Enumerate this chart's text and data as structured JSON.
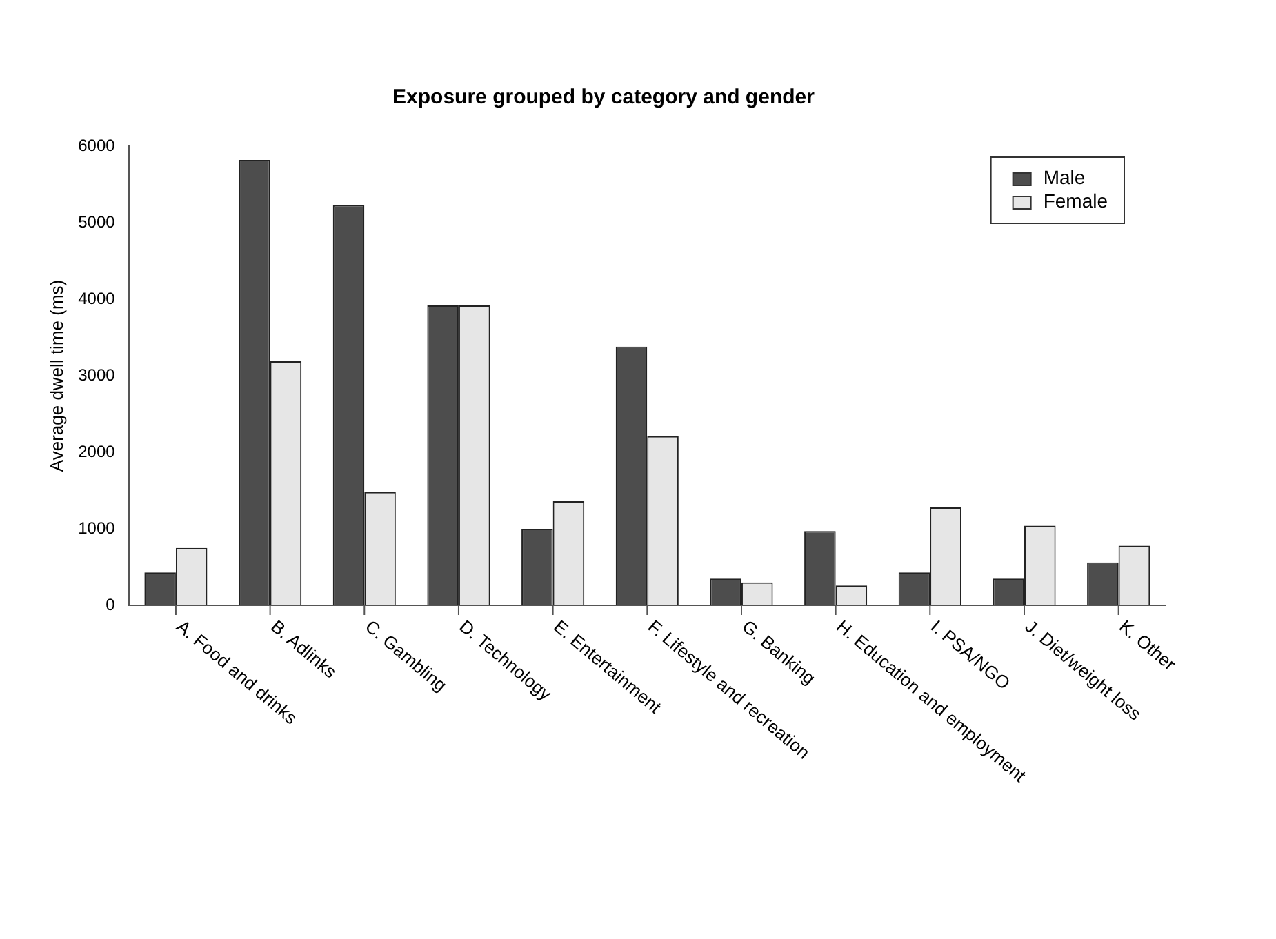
{
  "chart_data": {
    "type": "bar",
    "title": "Exposure grouped by category and gender",
    "ylabel": "Average dwell time (ms)",
    "categories": [
      "A. Food and drinks",
      "B. Adlinks",
      "C. Gambling",
      "D. Technology",
      "E. Entertainment",
      "F. Lifestyle and recreation",
      "G. Banking",
      "H. Education and employment",
      "I. PSA/NGO",
      "J. Diet/weight loss",
      "K. Other"
    ],
    "series": [
      {
        "name": "Male",
        "color": "#4d4d4d",
        "values": [
          430,
          5820,
          5230,
          3920,
          1000,
          3380,
          350,
          970,
          430,
          350,
          560
        ]
      },
      {
        "name": "Female",
        "color": "#e6e6e6",
        "values": [
          750,
          3190,
          1480,
          3920,
          1360,
          2210,
          300,
          260,
          1280,
          1040,
          780
        ]
      }
    ],
    "ylim": [
      0,
      6000
    ],
    "yticks": [
      0,
      1000,
      2000,
      3000,
      4000,
      5000,
      6000
    ],
    "grid": false,
    "legend": "top right"
  }
}
